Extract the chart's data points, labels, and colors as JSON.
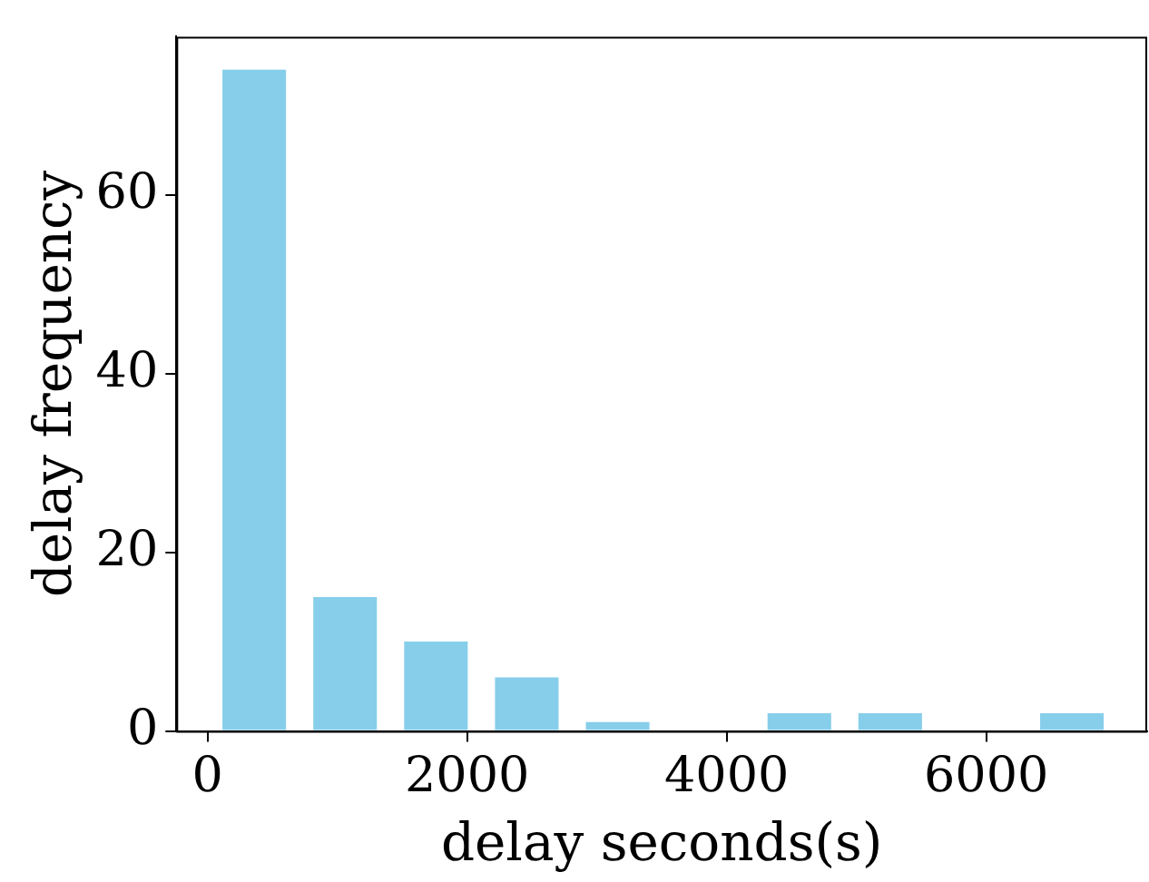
{
  "chart_data": {
    "type": "histogram",
    "xlabel": "delay seconds(s)",
    "ylabel": "delay frequency",
    "bins": [
      10,
      710,
      1410,
      2110,
      2810,
      3510,
      4210,
      4910,
      5610,
      6310,
      7010
    ],
    "values": [
      74,
      15,
      10,
      6,
      1,
      0,
      2,
      2,
      0,
      2
    ],
    "color": "#87ceeb",
    "xlim": [
      -240,
      7240
    ],
    "xticks": [
      0,
      2000,
      4000,
      6000
    ],
    "ylim": [
      0,
      77.7
    ],
    "yticks": [
      0,
      20,
      40,
      60
    ],
    "grid": false,
    "legend": false
  }
}
